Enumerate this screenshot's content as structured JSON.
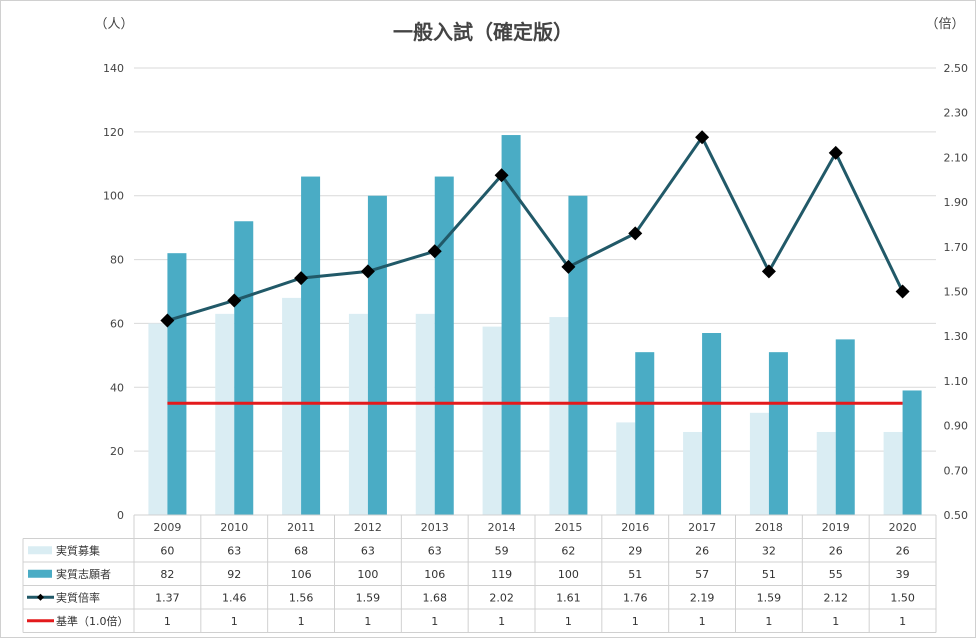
{
  "chart_data": {
    "type": "bar",
    "title": "一般入試（確定版）",
    "ylabel_left": "（人）",
    "ylabel_right": "（倍）",
    "ylim_left": [
      0,
      140
    ],
    "ylim_right": [
      0.5,
      2.5
    ],
    "yticks_left": [
      "0",
      "20",
      "40",
      "60",
      "80",
      "100",
      "120",
      "140"
    ],
    "yticks_right": [
      "0.50",
      "0.70",
      "0.90",
      "1.10",
      "1.30",
      "1.50",
      "1.70",
      "1.90",
      "2.10",
      "2.30",
      "2.50"
    ],
    "grid": true,
    "categories": [
      "2009",
      "2010",
      "2011",
      "2012",
      "2013",
      "2014",
      "2015",
      "2016",
      "2017",
      "2018",
      "2019",
      "2020"
    ],
    "series": [
      {
        "name": "実質募集",
        "type": "bar",
        "axis": "left",
        "color": "#daedf3",
        "values": [
          60,
          63,
          68,
          63,
          63,
          59,
          62,
          29,
          26,
          32,
          26,
          26
        ],
        "labels": [
          "60",
          "63",
          "68",
          "63",
          "63",
          "59",
          "62",
          "29",
          "26",
          "32",
          "26",
          "26"
        ]
      },
      {
        "name": "実質志願者",
        "type": "bar",
        "axis": "left",
        "color": "#4aacc5",
        "values": [
          82,
          92,
          106,
          100,
          106,
          119,
          100,
          51,
          57,
          51,
          55,
          39
        ],
        "labels": [
          "82",
          "92",
          "106",
          "100",
          "106",
          "119",
          "100",
          "51",
          "57",
          "51",
          "55",
          "39"
        ]
      },
      {
        "name": "実質倍率",
        "type": "line",
        "axis": "right",
        "color": "#215968",
        "marker_color": "#000000",
        "values": [
          1.37,
          1.46,
          1.56,
          1.59,
          1.68,
          2.02,
          1.61,
          1.76,
          2.19,
          1.59,
          2.12,
          1.5
        ],
        "labels": [
          "1.37",
          "1.46",
          "1.56",
          "1.59",
          "1.68",
          "2.02",
          "1.61",
          "1.76",
          "2.19",
          "1.59",
          "2.12",
          "1.50"
        ]
      },
      {
        "name": "基準（1.0倍）",
        "type": "line",
        "axis": "right",
        "color": "#e31a1c",
        "values": [
          1,
          1,
          1,
          1,
          1,
          1,
          1,
          1,
          1,
          1,
          1,
          1
        ],
        "labels": [
          "1",
          "1",
          "1",
          "1",
          "1",
          "1",
          "1",
          "1",
          "1",
          "1",
          "1",
          "1"
        ]
      }
    ],
    "legend": "data-table"
  }
}
